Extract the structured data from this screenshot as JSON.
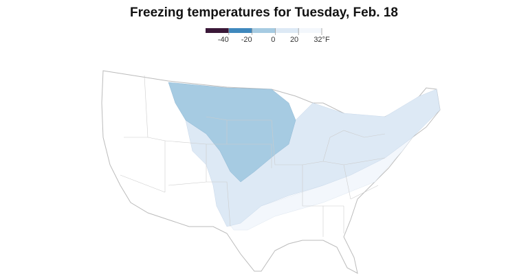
{
  "title": "Freezing temperatures for Tuesday, Feb. 18",
  "legend": {
    "colors": [
      "#3a1838",
      "#3f88bd",
      "#a6cbe2",
      "#dde9f5",
      "#f3f7fc"
    ],
    "ticks": [
      "-40",
      "-20",
      "0",
      "20",
      "32°F"
    ]
  }
}
